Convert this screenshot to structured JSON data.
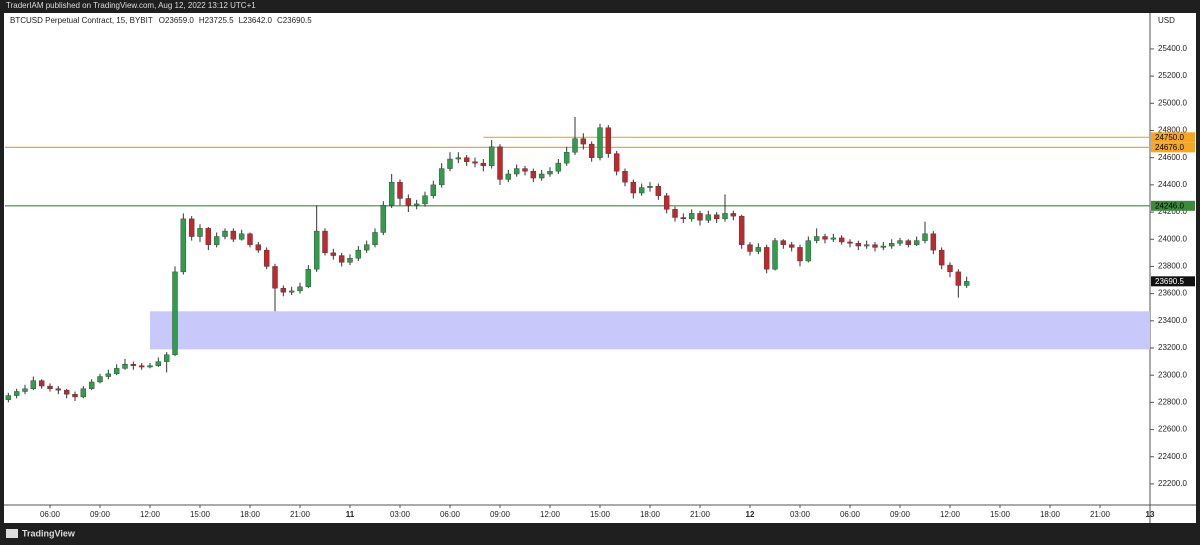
{
  "top_bar": "TraderIAM published on TradingView.com, Aug 12, 2022 13:12 UTC+1",
  "footer": "TradingView",
  "chart_data": {
    "type": "candlestick",
    "title": "BTCUSD Perpetual Contract, 15, BYBIT",
    "ohlc_legend": [
      "O23659.0",
      "H23725.5",
      "L23642.0",
      "C23690.5"
    ],
    "currency": "USD",
    "up_color": "#2e9e4a",
    "down_color": "#c0282d",
    "wick_color": "#333333",
    "x": [
      3.5,
      4,
      4.5,
      5,
      5.5,
      6,
      6.5,
      7,
      7.5,
      8,
      8.5,
      9,
      9.5,
      10,
      10.5,
      11,
      11.5,
      12,
      12.5,
      13,
      13.5,
      14,
      14.5,
      15,
      15.5,
      16,
      16.5,
      17,
      17.5,
      18,
      18.5,
      19,
      19.5,
      20,
      20.5,
      21,
      21.5,
      22,
      22.5,
      23,
      23.5,
      24,
      24.5,
      25,
      25.5,
      26,
      26.5,
      27,
      27.5,
      28,
      28.5,
      29,
      29.5,
      30,
      30.5,
      31,
      31.5,
      32,
      32.5,
      33,
      33.5,
      34,
      34.5,
      35,
      35.5,
      36,
      36.5,
      37,
      37.5,
      38,
      38.5,
      39,
      39.5,
      40,
      40.5,
      41,
      41.5,
      42,
      42.5,
      43,
      43.5,
      44,
      44.5,
      45,
      45.5,
      46,
      46.5,
      47,
      47.5,
      48,
      48.5,
      49,
      49.5,
      50,
      50.5,
      51,
      51.5,
      52,
      52.5,
      53,
      53.5,
      54,
      54.5,
      55,
      55.5,
      56,
      56.5,
      57,
      57.5,
      58,
      58.5,
      59,
      59.5,
      60,
      60.5,
      61
    ],
    "open": [
      22820,
      22850,
      22880,
      22900,
      22960,
      22920,
      22900,
      22890,
      22860,
      22840,
      22900,
      22950,
      22990,
      23010,
      23050,
      23080,
      23070,
      23060,
      23070,
      23100,
      23150,
      23760,
      24150,
      24020,
      24080,
      23960,
      24020,
      24060,
      24000,
      24040,
      23960,
      23920,
      23800,
      23640,
      23610,
      23620,
      23650,
      23780,
      24060,
      23900,
      23880,
      23830,
      23860,
      23920,
      23960,
      24050,
      24250,
      24420,
      24300,
      24250,
      24260,
      24320,
      24400,
      24520,
      24590,
      24600,
      24570,
      24560,
      24540,
      24680,
      24440,
      24480,
      24520,
      24500,
      24450,
      24480,
      24500,
      24560,
      24640,
      24740,
      24700,
      24600,
      24820,
      24630,
      24500,
      24420,
      24340,
      24380,
      24390,
      24320,
      24220,
      24160,
      24150,
      24190,
      24140,
      24180,
      24150,
      24190,
      24170,
      23960,
      23910,
      23940,
      23780,
      23990,
      23960,
      23940,
      23840,
      23990,
      24020,
      24000,
      24010,
      23980,
      23970,
      23950,
      23960,
      23940,
      23950,
      23970,
      23990,
      23960,
      23990,
      24040,
      23920,
      23810,
      23760,
      23660
    ],
    "high": [
      22870,
      22900,
      22930,
      22990,
      22970,
      22940,
      22920,
      22900,
      22880,
      22920,
      22970,
      23010,
      23040,
      23080,
      23120,
      23100,
      23090,
      23090,
      23130,
      23170,
      23800,
      24190,
      24170,
      24110,
      24090,
      24050,
      24080,
      24080,
      24070,
      24050,
      23980,
      23940,
      23820,
      23660,
      23650,
      23680,
      23810,
      24250,
      24080,
      23930,
      23900,
      23890,
      23950,
      23990,
      24080,
      24280,
      24480,
      24440,
      24330,
      24290,
      24350,
      24430,
      24560,
      24640,
      24640,
      24620,
      24600,
      24590,
      24730,
      24700,
      24510,
      24550,
      24540,
      24520,
      24510,
      24530,
      24590,
      24680,
      24900,
      24780,
      24720,
      24850,
      24840,
      24650,
      24520,
      24440,
      24410,
      24420,
      24410,
      24340,
      24240,
      24190,
      24220,
      24210,
      24210,
      24200,
      24330,
      24210,
      24180,
      23980,
      23970,
      23960,
      24010,
      24000,
      23980,
      23960,
      24020,
      24080,
      24040,
      24040,
      24030,
      24000,
      23990,
      23990,
      23980,
      23980,
      24000,
      24010,
      24000,
      24020,
      24130,
      24060,
      23940,
      23830,
      23780,
      23725.5
    ],
    "low": [
      22800,
      22830,
      22860,
      22890,
      22900,
      22880,
      22860,
      22830,
      22810,
      22830,
      22890,
      22940,
      22970,
      23000,
      23040,
      23040,
      23040,
      23050,
      23060,
      23020,
      23140,
      23740,
      23990,
      23980,
      23920,
      23940,
      24000,
      23980,
      23990,
      23940,
      23900,
      23780,
      23470,
      23580,
      23590,
      23600,
      23640,
      23760,
      23880,
      23850,
      23800,
      23810,
      23840,
      23900,
      23940,
      24030,
      24230,
      24250,
      24200,
      24220,
      24240,
      24300,
      24380,
      24500,
      24560,
      24540,
      24530,
      24500,
      24520,
      24400,
      24420,
      24460,
      24470,
      24420,
      24430,
      24460,
      24480,
      24540,
      24620,
      24660,
      24570,
      24580,
      24600,
      24470,
      24390,
      24300,
      24320,
      24350,
      24290,
      24190,
      24130,
      24120,
      24130,
      24100,
      24120,
      24120,
      24130,
      24140,
      23930,
      23880,
      23890,
      23750,
      23770,
      23930,
      23910,
      23800,
      23830,
      23970,
      23970,
      23980,
      23960,
      23940,
      23920,
      23930,
      23910,
      23920,
      23930,
      23950,
      23940,
      23950,
      23970,
      23890,
      23780,
      23720,
      23570,
      23642
    ],
    "close": [
      22850,
      22880,
      22900,
      22960,
      22920,
      22900,
      22890,
      22860,
      22840,
      22900,
      22950,
      22990,
      23010,
      23050,
      23080,
      23070,
      23060,
      23070,
      23100,
      23150,
      23760,
      24150,
      24020,
      24080,
      23960,
      24020,
      24060,
      24000,
      24040,
      23960,
      23920,
      23800,
      23640,
      23610,
      23620,
      23650,
      23780,
      24060,
      23900,
      23880,
      23830,
      23860,
      23920,
      23960,
      24050,
      24250,
      24420,
      24300,
      24250,
      24260,
      24320,
      24400,
      24520,
      24590,
      24600,
      24570,
      24560,
      24540,
      24680,
      24440,
      24480,
      24520,
      24500,
      24450,
      24480,
      24500,
      24560,
      24640,
      24740,
      24700,
      24600,
      24820,
      24630,
      24500,
      24420,
      24340,
      24380,
      24390,
      24320,
      24220,
      24160,
      24150,
      24190,
      24140,
      24180,
      24150,
      24190,
      24170,
      23960,
      23910,
      23940,
      23780,
      23990,
      23960,
      23940,
      23840,
      23990,
      24020,
      24000,
      24010,
      23980,
      23970,
      23950,
      23960,
      23940,
      23950,
      23970,
      23990,
      23960,
      23990,
      24040,
      23920,
      23810,
      23760,
      23660,
      23690
    ],
    "xlim": [
      3.3,
      72
    ],
    "ylim": [
      22045,
      25657
    ],
    "xticks": [
      {
        "value": 6,
        "label": "06:00"
      },
      {
        "value": 9,
        "label": "09:00"
      },
      {
        "value": 12,
        "label": "12:00"
      },
      {
        "value": 15,
        "label": "15:00"
      },
      {
        "value": 18,
        "label": "18:00"
      },
      {
        "value": 21,
        "label": "21:00"
      },
      {
        "value": 24,
        "label": "11"
      },
      {
        "value": 27,
        "label": "03:00"
      },
      {
        "value": 30,
        "label": "06:00"
      },
      {
        "value": 33,
        "label": "09:00"
      },
      {
        "value": 36,
        "label": "12:00"
      },
      {
        "value": 39,
        "label": "15:00"
      },
      {
        "value": 42,
        "label": "18:00"
      },
      {
        "value": 45,
        "label": "21:00"
      },
      {
        "value": 48,
        "label": "12"
      },
      {
        "value": 51,
        "label": "03:00"
      },
      {
        "value": 54,
        "label": "06:00"
      },
      {
        "value": 57,
        "label": "09:00"
      },
      {
        "value": 60,
        "label": "12:00"
      },
      {
        "value": 63,
        "label": "15:00"
      },
      {
        "value": 66,
        "label": "18:00"
      },
      {
        "value": 69,
        "label": "21:00"
      },
      {
        "value": 72,
        "label": "13"
      }
    ],
    "yticks": [
      {
        "value": 22200,
        "label": "22200.0"
      },
      {
        "value": 22400,
        "label": "22400.0"
      },
      {
        "value": 22600,
        "label": "22600.0"
      },
      {
        "value": 22800,
        "label": "22800.0"
      },
      {
        "value": 23000,
        "label": "23000.0"
      },
      {
        "value": 23200,
        "label": "23200.0"
      },
      {
        "value": 23400,
        "label": "23400.0"
      },
      {
        "value": 23600,
        "label": "23600.0"
      },
      {
        "value": 23800,
        "label": "23800.0"
      },
      {
        "value": 24000,
        "label": "24000.0"
      },
      {
        "value": 24200,
        "label": "24200.0"
      },
      {
        "value": 24400,
        "label": "24400.0"
      },
      {
        "value": 24600,
        "label": "24600.0"
      },
      {
        "value": 24800,
        "label": "24800.0"
      },
      {
        "value": 25000,
        "label": "25000.0"
      },
      {
        "value": 25200,
        "label": "25200.0"
      },
      {
        "value": 25400,
        "label": "25400.0"
      }
    ],
    "hlines": [
      {
        "value": 24750,
        "label": "24750.0",
        "color": "#f5a623",
        "x": 32
      },
      {
        "value": 24676,
        "label": "24676.0",
        "color": "#f5a623"
      },
      {
        "value": 24246,
        "label": "24246.0",
        "color": "#3c8a3c"
      }
    ],
    "zone": {
      "x": 12,
      "low": 23190,
      "high": 23470,
      "color": "#c8c8fa"
    },
    "last_price": 23690.5,
    "grid": false
  }
}
